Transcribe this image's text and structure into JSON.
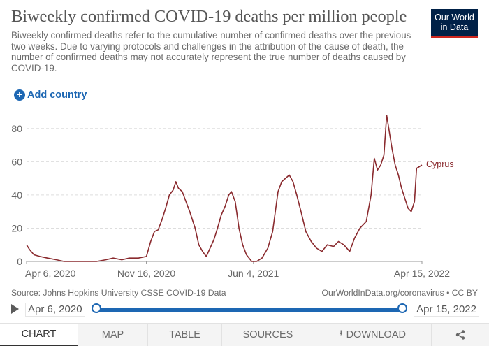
{
  "header": {
    "title": "Biweekly confirmed COVID-19 deaths per million people",
    "subtitle": "Biweekly confirmed deaths refer to the cumulative number of confirmed deaths over the previous two weeks. Due to varying protocols and challenges in the attribution of the cause of death, the number of confirmed deaths may not accurately represent the true number of deaths caused by COVID-19.",
    "logo_line1": "Our World",
    "logo_line2": "in Data"
  },
  "controls": {
    "add_country": "Add country"
  },
  "footer": {
    "source": "Source: Johns Hopkins University CSSE COVID-19 Data",
    "credit": "OurWorldInData.org/coronavirus • CC BY"
  },
  "timeline": {
    "start": "Apr 6, 2020",
    "end": "Apr 15, 2022"
  },
  "tabs": {
    "chart": "CHART",
    "map": "MAP",
    "table": "TABLE",
    "sources": "SOURCES",
    "download": "DOWNLOAD"
  },
  "colors": {
    "series": "#8a2a2e",
    "accent": "#1d67b3",
    "brand": "#002147",
    "brand_stripe": "#ce261e"
  },
  "icons": {
    "add": "plus-circle-icon",
    "play": "play-icon",
    "download": "download-icon",
    "share": "share-icon"
  },
  "chart_data": {
    "type": "line",
    "x_ticks": [
      "Apr 6, 2020",
      "Nov 16, 2020",
      "Jun 4, 2021",
      "Apr 15, 2022"
    ],
    "y_ticks": [
      0,
      20,
      40,
      60,
      80
    ],
    "ylim": [
      0,
      90
    ],
    "xlim": [
      "2020-04-06",
      "2022-04-15"
    ],
    "grid": "horizontal dashed",
    "series": [
      {
        "name": "Cyprus",
        "points": [
          [
            "2020-04-06",
            10
          ],
          [
            "2020-04-12",
            7
          ],
          [
            "2020-04-20",
            4
          ],
          [
            "2020-05-01",
            3
          ],
          [
            "2020-05-15",
            2
          ],
          [
            "2020-06-01",
            1
          ],
          [
            "2020-06-15",
            0
          ],
          [
            "2020-07-15",
            0
          ],
          [
            "2020-08-15",
            0
          ],
          [
            "2020-09-01",
            1
          ],
          [
            "2020-09-15",
            2
          ],
          [
            "2020-10-01",
            1
          ],
          [
            "2020-10-15",
            2
          ],
          [
            "2020-11-01",
            2
          ],
          [
            "2020-11-16",
            3
          ],
          [
            "2020-11-24",
            12
          ],
          [
            "2020-12-01",
            18
          ],
          [
            "2020-12-08",
            19
          ],
          [
            "2020-12-15",
            25
          ],
          [
            "2020-12-22",
            32
          ],
          [
            "2020-12-29",
            40
          ],
          [
            "2021-01-05",
            43
          ],
          [
            "2021-01-10",
            48
          ],
          [
            "2021-01-15",
            44
          ],
          [
            "2021-01-22",
            42
          ],
          [
            "2021-01-29",
            36
          ],
          [
            "2021-02-05",
            30
          ],
          [
            "2021-02-15",
            20
          ],
          [
            "2021-02-22",
            10
          ],
          [
            "2021-03-01",
            6
          ],
          [
            "2021-03-08",
            3
          ],
          [
            "2021-03-15",
            8
          ],
          [
            "2021-03-22",
            13
          ],
          [
            "2021-03-29",
            20
          ],
          [
            "2021-04-05",
            28
          ],
          [
            "2021-04-12",
            33
          ],
          [
            "2021-04-19",
            40
          ],
          [
            "2021-04-24",
            42
          ],
          [
            "2021-05-01",
            36
          ],
          [
            "2021-05-08",
            20
          ],
          [
            "2021-05-15",
            10
          ],
          [
            "2021-05-22",
            4
          ],
          [
            "2021-06-01",
            0
          ],
          [
            "2021-06-10",
            0
          ],
          [
            "2021-06-20",
            2
          ],
          [
            "2021-07-01",
            8
          ],
          [
            "2021-07-10",
            18
          ],
          [
            "2021-07-20",
            42
          ],
          [
            "2021-07-27",
            48
          ],
          [
            "2021-08-03",
            50
          ],
          [
            "2021-08-10",
            52
          ],
          [
            "2021-08-17",
            48
          ],
          [
            "2021-08-24",
            40
          ],
          [
            "2021-09-01",
            30
          ],
          [
            "2021-09-10",
            18
          ],
          [
            "2021-09-20",
            12
          ],
          [
            "2021-09-30",
            8
          ],
          [
            "2021-10-10",
            6
          ],
          [
            "2021-10-20",
            10
          ],
          [
            "2021-11-01",
            9
          ],
          [
            "2021-11-10",
            12
          ],
          [
            "2021-11-20",
            10
          ],
          [
            "2021-12-01",
            6
          ],
          [
            "2021-12-10",
            14
          ],
          [
            "2021-12-20",
            20
          ],
          [
            "2022-01-01",
            24
          ],
          [
            "2022-01-10",
            40
          ],
          [
            "2022-01-16",
            62
          ],
          [
            "2022-01-22",
            55
          ],
          [
            "2022-01-28",
            58
          ],
          [
            "2022-02-03",
            64
          ],
          [
            "2022-02-08",
            88
          ],
          [
            "2022-02-13",
            78
          ],
          [
            "2022-02-18",
            68
          ],
          [
            "2022-02-24",
            58
          ],
          [
            "2022-03-02",
            52
          ],
          [
            "2022-03-08",
            44
          ],
          [
            "2022-03-14",
            38
          ],
          [
            "2022-03-20",
            32
          ],
          [
            "2022-03-26",
            30
          ],
          [
            "2022-04-01",
            36
          ],
          [
            "2022-04-05",
            56
          ],
          [
            "2022-04-10",
            57
          ],
          [
            "2022-04-15",
            58
          ]
        ]
      }
    ]
  }
}
